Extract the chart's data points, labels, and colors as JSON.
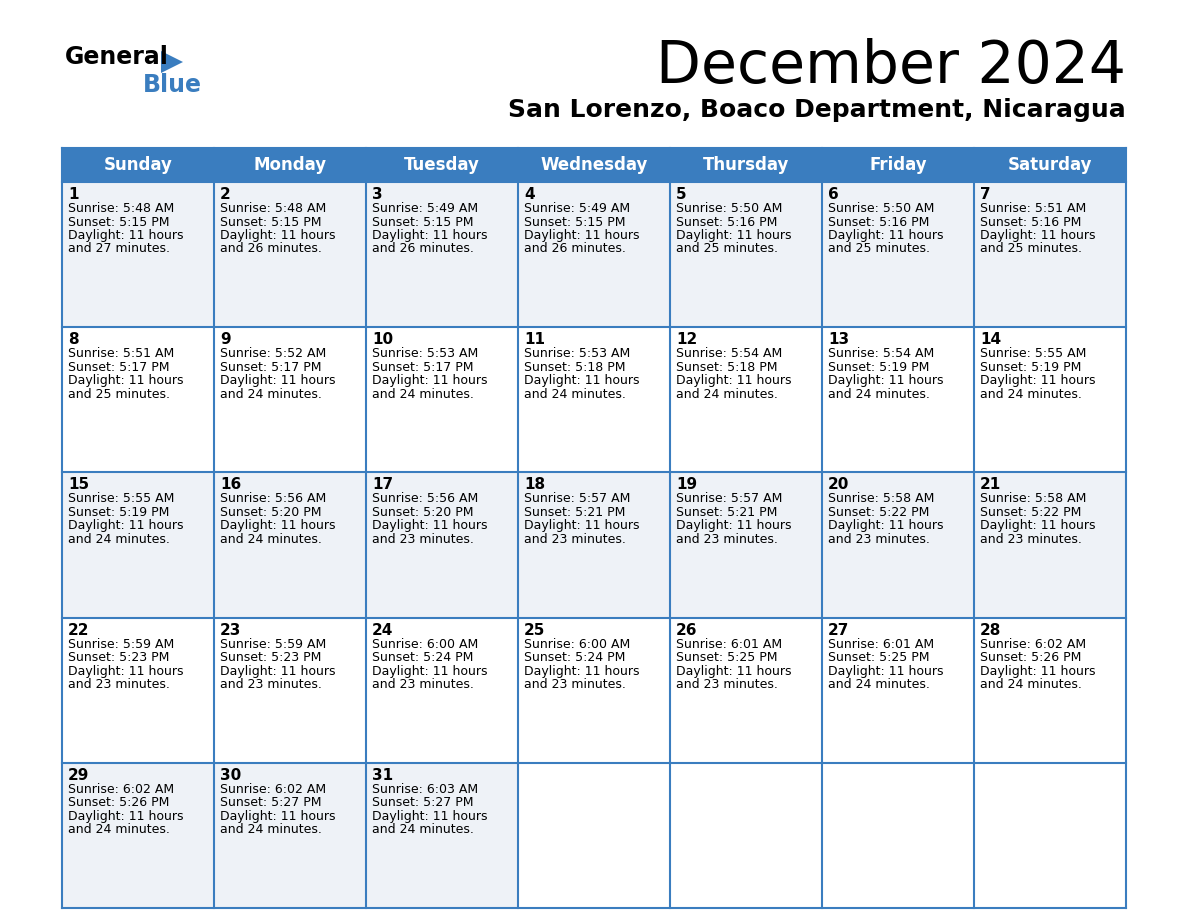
{
  "title": "December 2024",
  "subtitle": "San Lorenzo, Boaco Department, Nicaragua",
  "header_bg": "#3a7dbf",
  "header_text": "#ffffff",
  "cell_bg_odd": "#eef2f7",
  "cell_bg_even": "#ffffff",
  "border_color": "#3a7dbf",
  "text_color": "#222222",
  "days_of_week": [
    "Sunday",
    "Monday",
    "Tuesday",
    "Wednesday",
    "Thursday",
    "Friday",
    "Saturday"
  ],
  "calendar": [
    [
      {
        "day": 1,
        "sunrise": "5:48 AM",
        "sunset": "5:15 PM",
        "dl_min": "27"
      },
      {
        "day": 2,
        "sunrise": "5:48 AM",
        "sunset": "5:15 PM",
        "dl_min": "26"
      },
      {
        "day": 3,
        "sunrise": "5:49 AM",
        "sunset": "5:15 PM",
        "dl_min": "26"
      },
      {
        "day": 4,
        "sunrise": "5:49 AM",
        "sunset": "5:15 PM",
        "dl_min": "26"
      },
      {
        "day": 5,
        "sunrise": "5:50 AM",
        "sunset": "5:16 PM",
        "dl_min": "25"
      },
      {
        "day": 6,
        "sunrise": "5:50 AM",
        "sunset": "5:16 PM",
        "dl_min": "25"
      },
      {
        "day": 7,
        "sunrise": "5:51 AM",
        "sunset": "5:16 PM",
        "dl_min": "25"
      }
    ],
    [
      {
        "day": 8,
        "sunrise": "5:51 AM",
        "sunset": "5:17 PM",
        "dl_min": "25"
      },
      {
        "day": 9,
        "sunrise": "5:52 AM",
        "sunset": "5:17 PM",
        "dl_min": "24"
      },
      {
        "day": 10,
        "sunrise": "5:53 AM",
        "sunset": "5:17 PM",
        "dl_min": "24"
      },
      {
        "day": 11,
        "sunrise": "5:53 AM",
        "sunset": "5:18 PM",
        "dl_min": "24"
      },
      {
        "day": 12,
        "sunrise": "5:54 AM",
        "sunset": "5:18 PM",
        "dl_min": "24"
      },
      {
        "day": 13,
        "sunrise": "5:54 AM",
        "sunset": "5:19 PM",
        "dl_min": "24"
      },
      {
        "day": 14,
        "sunrise": "5:55 AM",
        "sunset": "5:19 PM",
        "dl_min": "24"
      }
    ],
    [
      {
        "day": 15,
        "sunrise": "5:55 AM",
        "sunset": "5:19 PM",
        "dl_min": "24"
      },
      {
        "day": 16,
        "sunrise": "5:56 AM",
        "sunset": "5:20 PM",
        "dl_min": "24"
      },
      {
        "day": 17,
        "sunrise": "5:56 AM",
        "sunset": "5:20 PM",
        "dl_min": "23"
      },
      {
        "day": 18,
        "sunrise": "5:57 AM",
        "sunset": "5:21 PM",
        "dl_min": "23"
      },
      {
        "day": 19,
        "sunrise": "5:57 AM",
        "sunset": "5:21 PM",
        "dl_min": "23"
      },
      {
        "day": 20,
        "sunrise": "5:58 AM",
        "sunset": "5:22 PM",
        "dl_min": "23"
      },
      {
        "day": 21,
        "sunrise": "5:58 AM",
        "sunset": "5:22 PM",
        "dl_min": "23"
      }
    ],
    [
      {
        "day": 22,
        "sunrise": "5:59 AM",
        "sunset": "5:23 PM",
        "dl_min": "23"
      },
      {
        "day": 23,
        "sunrise": "5:59 AM",
        "sunset": "5:23 PM",
        "dl_min": "23"
      },
      {
        "day": 24,
        "sunrise": "6:00 AM",
        "sunset": "5:24 PM",
        "dl_min": "23"
      },
      {
        "day": 25,
        "sunrise": "6:00 AM",
        "sunset": "5:24 PM",
        "dl_min": "23"
      },
      {
        "day": 26,
        "sunrise": "6:01 AM",
        "sunset": "5:25 PM",
        "dl_min": "23"
      },
      {
        "day": 27,
        "sunrise": "6:01 AM",
        "sunset": "5:25 PM",
        "dl_min": "24"
      },
      {
        "day": 28,
        "sunrise": "6:02 AM",
        "sunset": "5:26 PM",
        "dl_min": "24"
      }
    ],
    [
      {
        "day": 29,
        "sunrise": "6:02 AM",
        "sunset": "5:26 PM",
        "dl_min": "24"
      },
      {
        "day": 30,
        "sunrise": "6:02 AM",
        "sunset": "5:27 PM",
        "dl_min": "24"
      },
      {
        "day": 31,
        "sunrise": "6:03 AM",
        "sunset": "5:27 PM",
        "dl_min": "24"
      },
      null,
      null,
      null,
      null
    ]
  ]
}
